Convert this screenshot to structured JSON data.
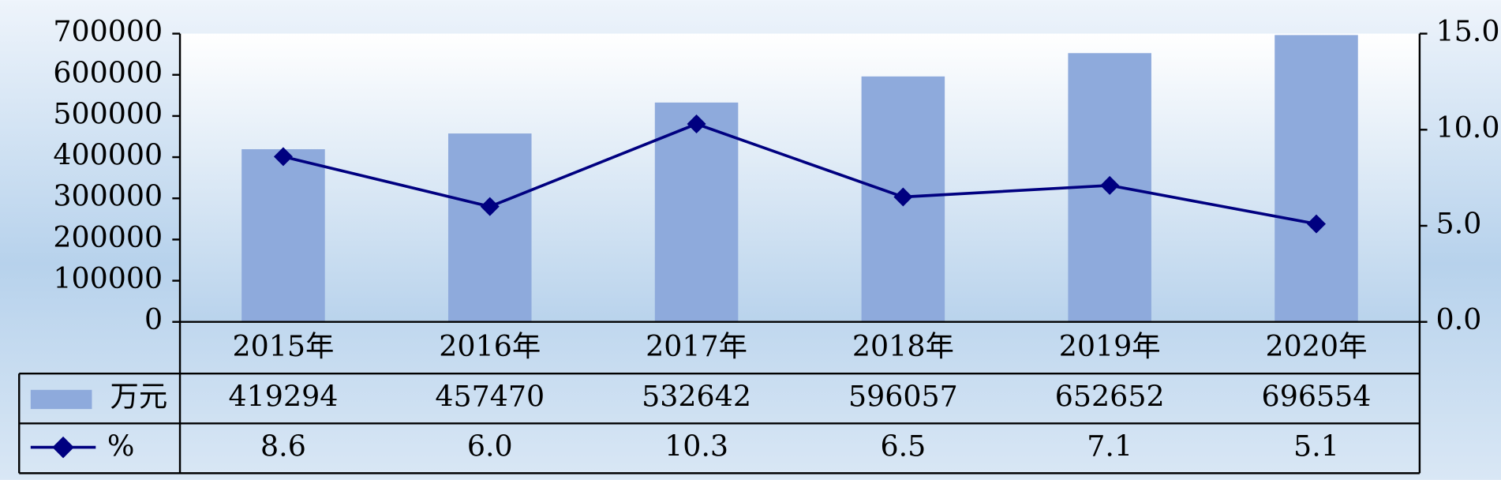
{
  "chart_data": {
    "type": "bar-line",
    "categories": [
      "2015年",
      "2016年",
      "2017年",
      "2018年",
      "2019年",
      "2020年"
    ],
    "series": [
      {
        "name": "万元",
        "color": "#8eaadc",
        "type": "bar",
        "values": [
          419294,
          457470,
          532642,
          596057,
          652652,
          696554
        ]
      },
      {
        "name": "%",
        "color": "#000080",
        "type": "line",
        "axis": "y2",
        "values": [
          8.6,
          6.0,
          10.3,
          6.5,
          7.1,
          5.1
        ],
        "value_labels": [
          "8.6",
          "6.0",
          "10.3",
          "6.5",
          "7.1",
          "5.1"
        ]
      }
    ],
    "ylim": [
      0,
      700000
    ],
    "yticks": [
      0,
      100000,
      200000,
      300000,
      400000,
      500000,
      600000,
      700000
    ],
    "y2lim": [
      0,
      15
    ],
    "y2ticks": [
      {
        "value": 0,
        "label": "0.0"
      },
      {
        "value": 5,
        "label": "5.0"
      },
      {
        "value": 10,
        "label": "10.0"
      },
      {
        "value": 15,
        "label": "15.0"
      }
    ],
    "legend": "table"
  }
}
